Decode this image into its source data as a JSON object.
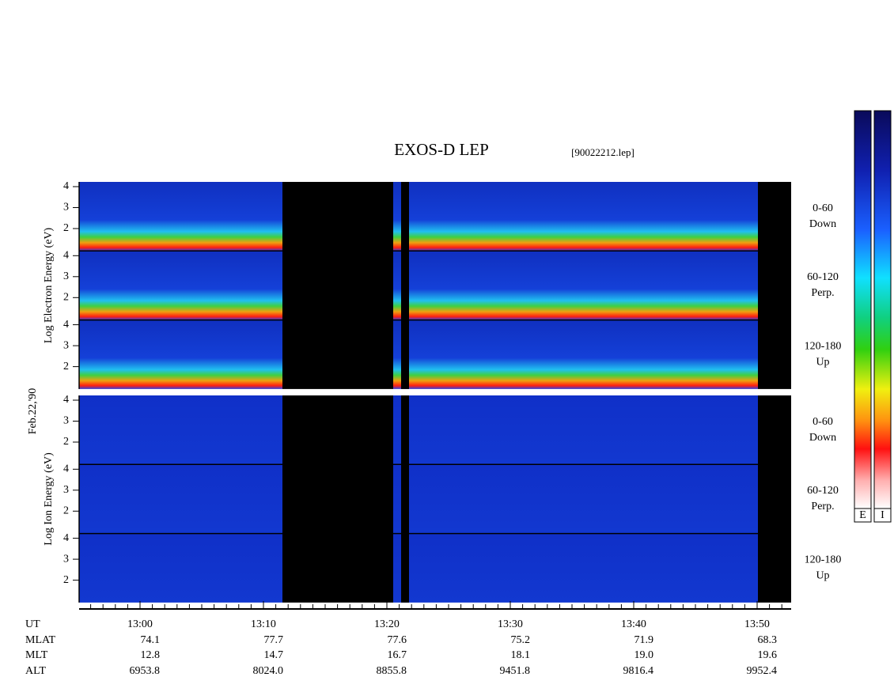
{
  "title": "EXOS-D LEP",
  "file": "[90022212.lep]",
  "date": "Feb.22,'90",
  "panels": [
    {
      "ylabel": "Log  Electron  Energy (eV)",
      "yticks": [
        "4",
        "3",
        "2"
      ],
      "channels": [
        {
          "pitch": "0-60",
          "dir": "Down"
        },
        {
          "pitch": "60-120",
          "dir": "Perp."
        },
        {
          "pitch": "120-180",
          "dir": "Up"
        }
      ]
    },
    {
      "ylabel": "Log  Ion  Energy (eV)",
      "yticks": [
        "4",
        "3",
        "2"
      ],
      "channels": [
        {
          "pitch": "0-60",
          "dir": "Down"
        },
        {
          "pitch": "60-120",
          "dir": "Perp."
        },
        {
          "pitch": "120-180",
          "dir": "Up"
        }
      ]
    }
  ],
  "ephemeris": {
    "labels": [
      "UT",
      "MLAT",
      "MLT",
      "ALT"
    ],
    "columns": [
      [
        "13:00",
        "74.1",
        "12.8",
        "6953.8"
      ],
      [
        "13:10",
        "77.7",
        "14.7",
        "8024.0"
      ],
      [
        "13:20",
        "77.6",
        "16.7",
        "8855.8"
      ],
      [
        "13:30",
        "75.2",
        "18.1",
        "9451.8"
      ],
      [
        "13:40",
        "71.9",
        "19.0",
        "9816.4"
      ],
      [
        "13:50",
        "68.3",
        "19.6",
        "9952.4"
      ]
    ]
  },
  "colorbar": {
    "labels": [
      "E",
      "I"
    ]
  }
}
